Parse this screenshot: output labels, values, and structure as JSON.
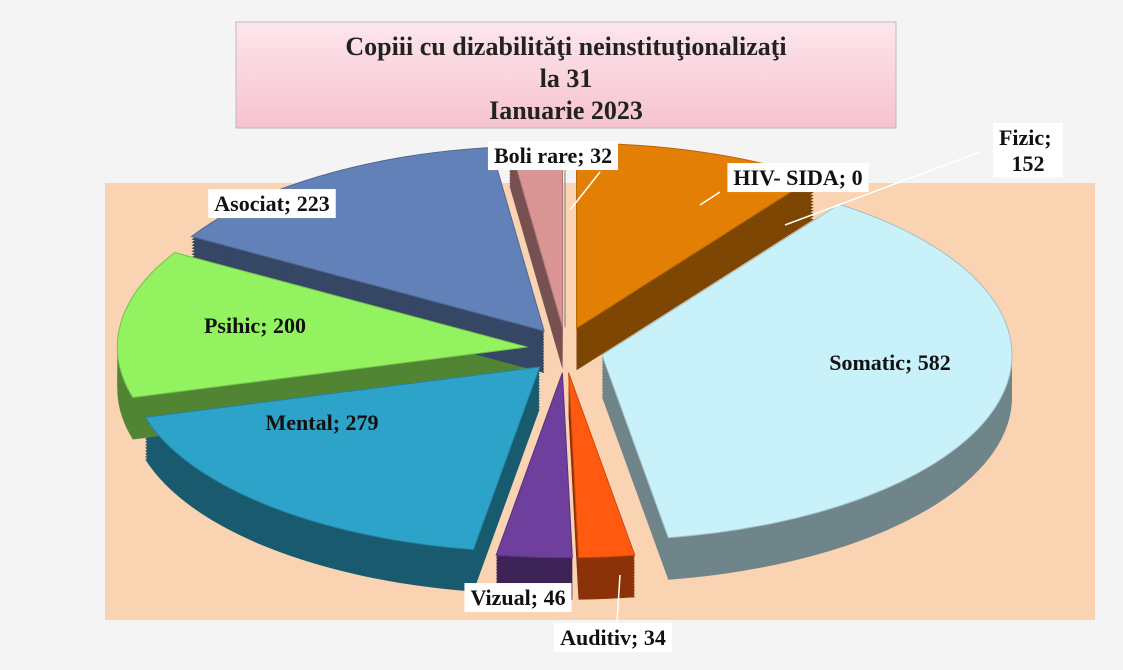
{
  "chart_data": {
    "type": "pie",
    "title": [
      "Copiii cu dizabilităţi neinstituţionalizaţi",
      "la  31",
      "Ianuarie 2023"
    ],
    "categories": [
      "Fizic",
      "Somatic",
      "Auditiv",
      "Vizual",
      "Mental",
      "Psihic",
      "Asociat",
      "Boli rare",
      "HIV- SIDA"
    ],
    "values": [
      152,
      582,
      34,
      46,
      279,
      200,
      223,
      32,
      0
    ],
    "label_separator": "; ",
    "colors": [
      "#e47f05",
      "#c9f1f9",
      "#ff5a10",
      "#6e3f9c",
      "#2ea3c9",
      "#93f25f",
      "#6381b9",
      "#d99494",
      "#999999"
    ]
  }
}
